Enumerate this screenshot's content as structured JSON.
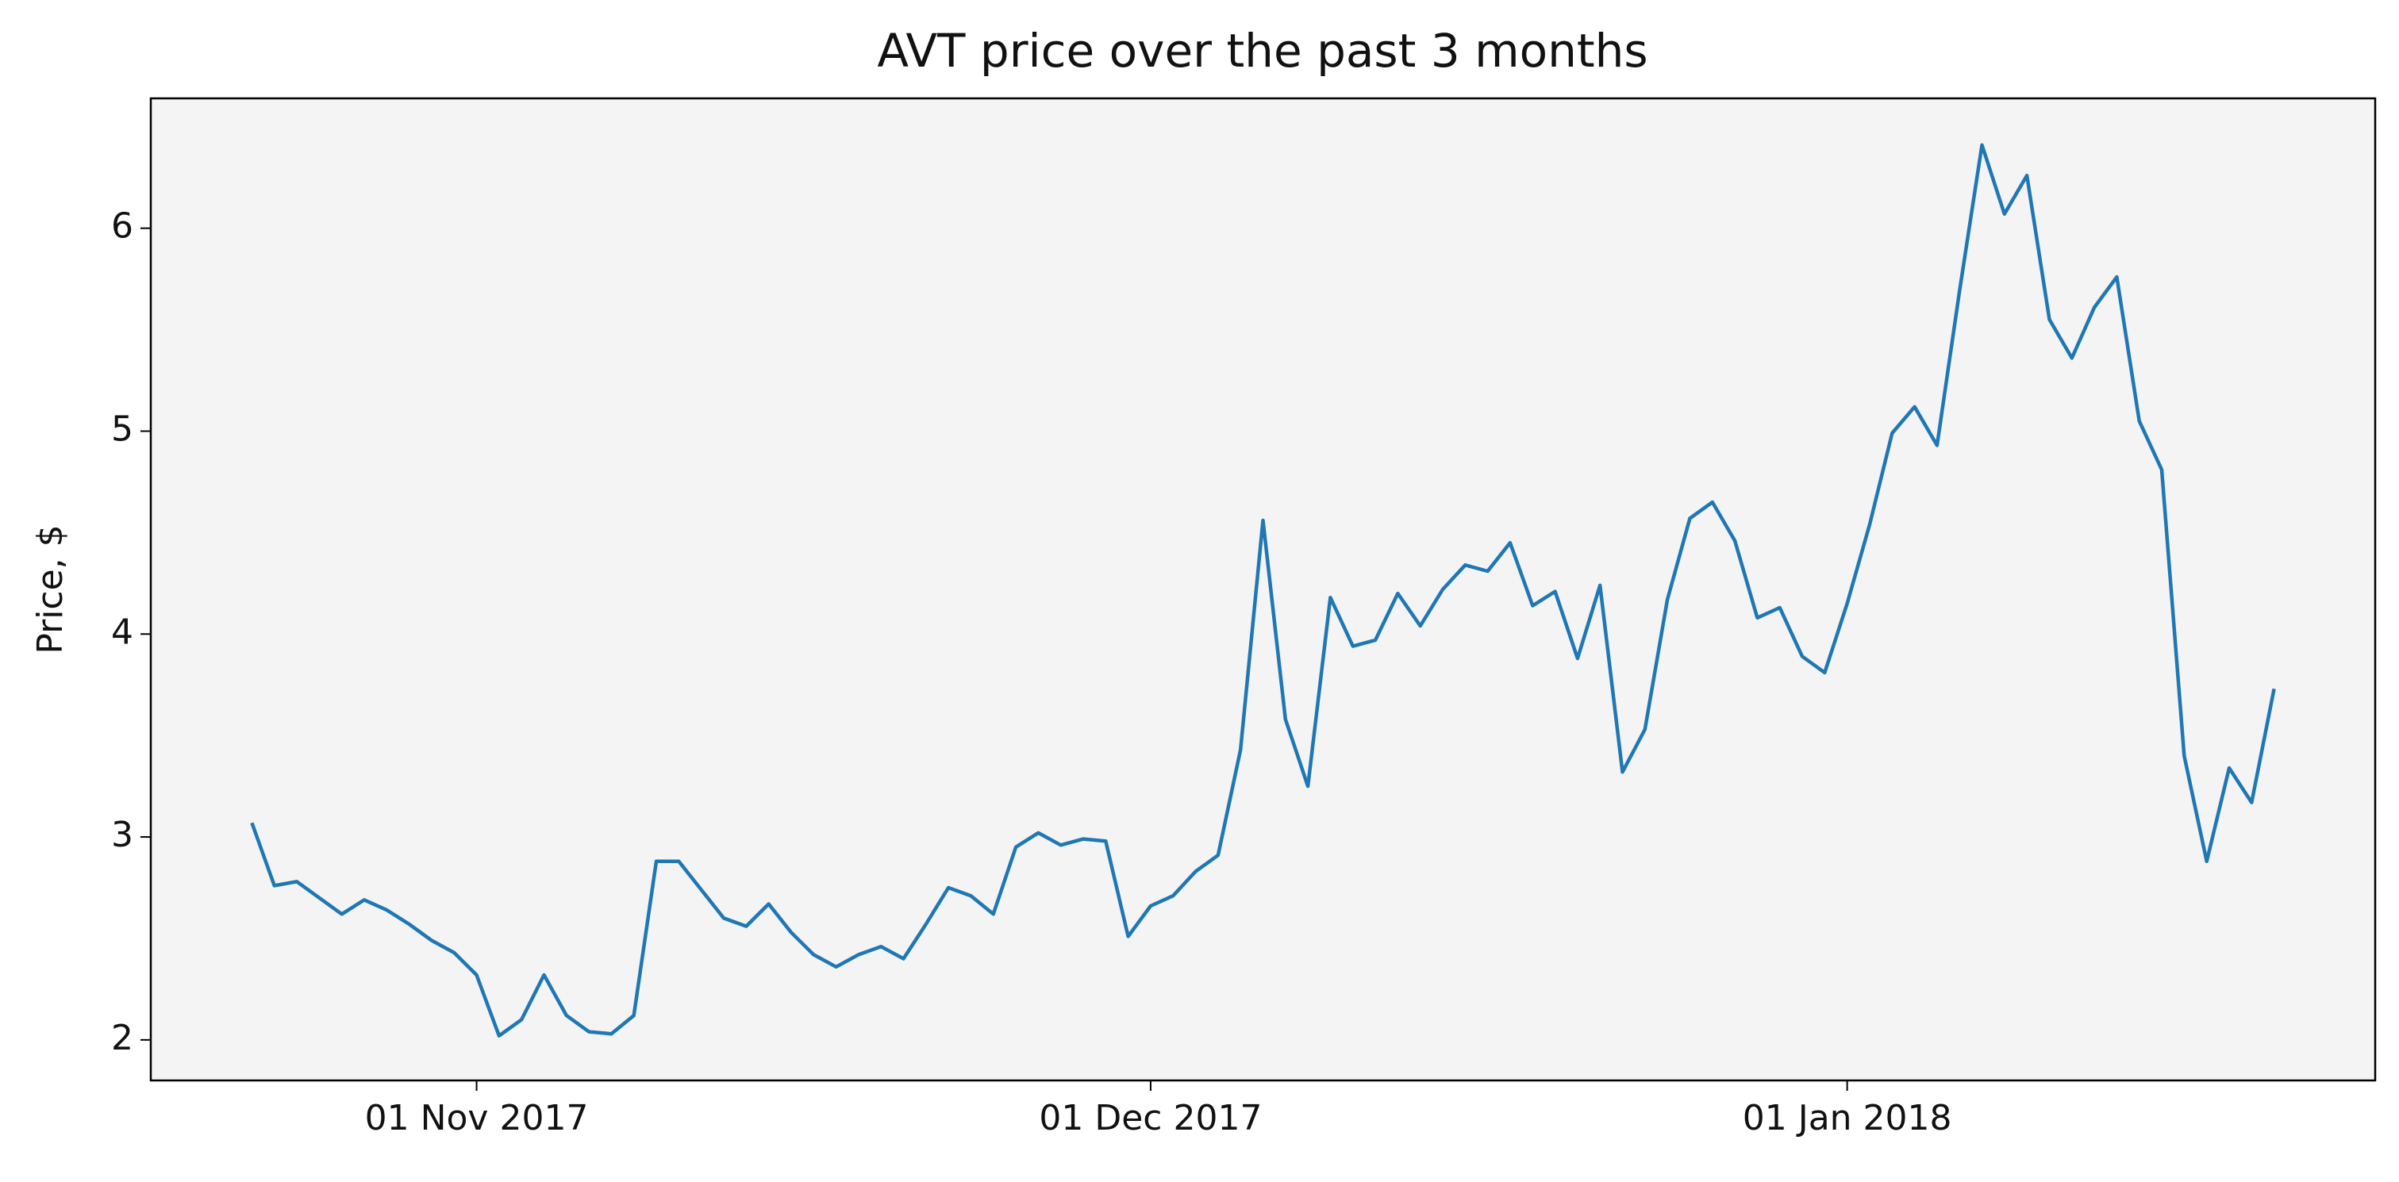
{
  "chart_data": {
    "type": "line",
    "title": "AVT price over the past 3 months",
    "y_label": "Price, $",
    "x": [
      "2017-10-22",
      "2017-10-23",
      "2017-10-24",
      "2017-10-25",
      "2017-10-26",
      "2017-10-27",
      "2017-10-28",
      "2017-10-29",
      "2017-10-30",
      "2017-10-31",
      "2017-11-01",
      "2017-11-02",
      "2017-11-03",
      "2017-11-04",
      "2017-11-05",
      "2017-11-06",
      "2017-11-07",
      "2017-11-08",
      "2017-11-09",
      "2017-11-10",
      "2017-11-11",
      "2017-11-12",
      "2017-11-13",
      "2017-11-14",
      "2017-11-15",
      "2017-11-16",
      "2017-11-17",
      "2017-11-18",
      "2017-11-19",
      "2017-11-20",
      "2017-11-21",
      "2017-11-22",
      "2017-11-23",
      "2017-11-24",
      "2017-11-25",
      "2017-11-26",
      "2017-11-27",
      "2017-11-28",
      "2017-11-29",
      "2017-11-30",
      "2017-12-01",
      "2017-12-02",
      "2017-12-03",
      "2017-12-04",
      "2017-12-05",
      "2017-12-06",
      "2017-12-07",
      "2017-12-08",
      "2017-12-09",
      "2017-12-10",
      "2017-12-11",
      "2017-12-12",
      "2017-12-13",
      "2017-12-14",
      "2017-12-15",
      "2017-12-16",
      "2017-12-17",
      "2017-12-18",
      "2017-12-19",
      "2017-12-20",
      "2017-12-21",
      "2017-12-22",
      "2017-12-23",
      "2017-12-24",
      "2017-12-25",
      "2017-12-26",
      "2017-12-27",
      "2017-12-28",
      "2017-12-29",
      "2017-12-30",
      "2017-12-31",
      "2018-01-01",
      "2018-01-02",
      "2018-01-03",
      "2018-01-04",
      "2018-01-05",
      "2018-01-06",
      "2018-01-07",
      "2018-01-08",
      "2018-01-09",
      "2018-01-10",
      "2018-01-11",
      "2018-01-12",
      "2018-01-13",
      "2018-01-14",
      "2018-01-15",
      "2018-01-16",
      "2018-01-17",
      "2018-01-18",
      "2018-01-19",
      "2018-01-20"
    ],
    "series": [
      {
        "name": "AVT",
        "color": "#1f77b4",
        "values": [
          3.07,
          2.76,
          2.78,
          2.7,
          2.62,
          2.69,
          2.64,
          2.57,
          2.49,
          2.43,
          2.32,
          2.02,
          2.1,
          2.32,
          2.12,
          2.04,
          2.03,
          2.12,
          2.88,
          2.88,
          2.74,
          2.6,
          2.56,
          2.67,
          2.53,
          2.42,
          2.36,
          2.42,
          2.46,
          2.4,
          2.57,
          2.75,
          2.71,
          2.62,
          2.95,
          3.02,
          2.96,
          2.99,
          2.98,
          2.51,
          2.66,
          2.71,
          2.83,
          2.91,
          3.43,
          4.56,
          3.58,
          3.25,
          4.18,
          3.94,
          3.97,
          4.2,
          4.04,
          4.22,
          4.34,
          4.31,
          4.45,
          4.14,
          4.21,
          3.88,
          4.24,
          3.32,
          3.53,
          4.17,
          4.57,
          4.65,
          4.46,
          4.08,
          4.13,
          3.89,
          3.81,
          4.15,
          4.54,
          4.99,
          5.12,
          4.93,
          5.69,
          6.41,
          6.07,
          6.26,
          5.55,
          5.36,
          5.61,
          5.76,
          5.05,
          4.81,
          3.4,
          2.88,
          3.34,
          3.17,
          3.73
        ]
      }
    ],
    "xlim": [
      "2017-10-17T12:00Z",
      "2018-01-24T12:00Z"
    ],
    "xticks": [
      {
        "value": "2017-11-01",
        "label": "01 Nov 2017"
      },
      {
        "value": "2017-12-01",
        "label": "01 Dec 2017"
      },
      {
        "value": "2018-01-01",
        "label": "01 Jan 2018"
      }
    ],
    "ylim": [
      1.8,
      6.64
    ],
    "yticks": [
      2,
      3,
      4,
      5,
      6
    ],
    "background": "#f4f4f4"
  }
}
